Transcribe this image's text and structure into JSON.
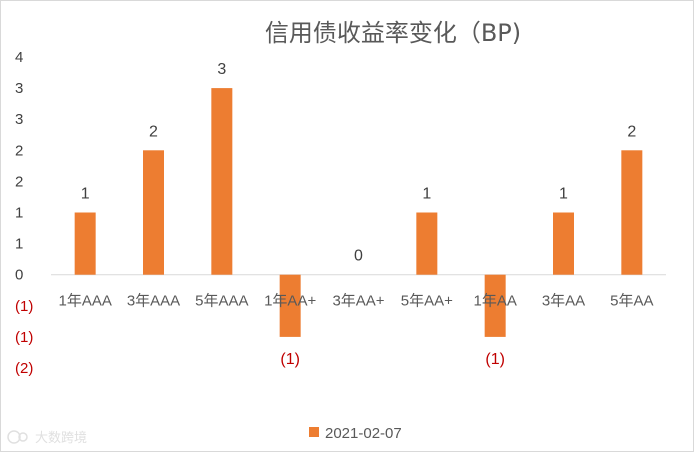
{
  "chart_data": {
    "type": "bar",
    "title": "信用债收益率变化（BP)",
    "categories": [
      "1年AAA",
      "3年AAA",
      "5年AAA",
      "1年AA+",
      "3年AA+",
      "5年AA+",
      "1年AA",
      "3年AA",
      "5年AA"
    ],
    "series": [
      {
        "name": "2021-02-07",
        "values": [
          1,
          2,
          3,
          -1,
          0,
          1,
          -1,
          1,
          2
        ],
        "data_labels": [
          "1",
          "2",
          "3",
          "(1)",
          "0",
          "1",
          "(1)",
          "1",
          "2"
        ],
        "color": "#ed7d31"
      }
    ],
    "yticks": [
      {
        "value": 3.5,
        "label": "4"
      },
      {
        "value": 3.0,
        "label": "3"
      },
      {
        "value": 2.5,
        "label": "3"
      },
      {
        "value": 2.0,
        "label": "2"
      },
      {
        "value": 1.5,
        "label": "2"
      },
      {
        "value": 1.0,
        "label": "1"
      },
      {
        "value": 0.5,
        "label": "1"
      },
      {
        "value": 0.0,
        "label": "0"
      },
      {
        "value": -0.5,
        "label": "(1)"
      },
      {
        "value": -1.0,
        "label": "(1)"
      },
      {
        "value": -1.5,
        "label": "(2)"
      }
    ],
    "ylim": [
      -1.5,
      3.5
    ],
    "xlabel": "",
    "ylabel": "",
    "grid": false,
    "legend": "bottom",
    "negative_label_color": "#c00000"
  },
  "watermark": {
    "text": "大数跨境",
    "icon": "watermark-logo-icon"
  }
}
